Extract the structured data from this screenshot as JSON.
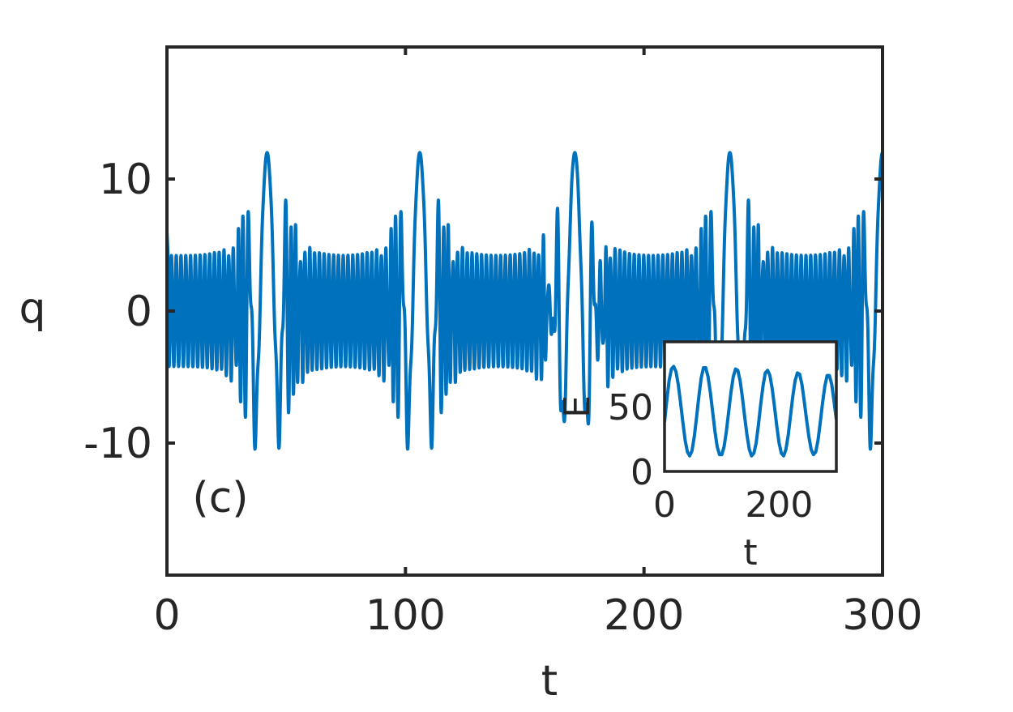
{
  "chart_data": [
    {
      "type": "line",
      "title": "",
      "xlabel": "t",
      "ylabel": "q",
      "panel_label": "(c)",
      "xlim": [
        0,
        300
      ],
      "ylim": [
        -20,
        20
      ],
      "xticks": [
        0,
        100,
        200,
        300
      ],
      "xtick_labels": [
        "0",
        "100",
        "200",
        "300"
      ],
      "yticks": [
        -10,
        0,
        10
      ],
      "ytick_labels": [
        "-10",
        "0",
        "10"
      ],
      "grid": false,
      "legend": "none",
      "color": "#0072BD",
      "series": [
        {
          "name": "",
          "description_values": {
            "carrier_period": 2.0,
            "fast_envelope": 4.2,
            "burst_centers": [
              42,
              106,
              171,
              236,
              300
            ],
            "x": [
              0,
              14.5,
              29.3,
              36.1,
              42.5,
              51.9,
              57.9,
              73.8,
              96.6,
              101.4,
              106.4,
              115.4,
              121.4,
              138.2,
              160.6,
              165.7,
              171.5,
              180.3,
              186.1,
              203.1,
              225.4,
              230.5,
              236.5,
              245.5,
              251.2,
              268.1,
              290.3,
              295.3,
              300
            ],
            "y": [
              6.0,
              4.2,
              6.8,
              -8.4,
              11.6,
              -11.3,
              8.2,
              4.2,
              6.9,
              -8.6,
              12.0,
              -10.7,
              7.9,
              4.2,
              6.8,
              -8.9,
              12.4,
              -9.9,
              7.5,
              4.2,
              7.3,
              -9.4,
              12.6,
              -9.3,
              7.2,
              4.2,
              7.7,
              -10.4,
              11.2
            ]
          }
        }
      ]
    },
    {
      "type": "line",
      "title": "",
      "xlabel": "t",
      "ylabel": "E",
      "xlim": [
        0,
        300
      ],
      "ylim": [
        0,
        100
      ],
      "xticks": [
        0,
        200
      ],
      "xtick_labels": [
        "0",
        "200"
      ],
      "yticks": [
        0,
        50
      ],
      "ytick_labels": [
        "0",
        "50"
      ],
      "grid": false,
      "legend": "none",
      "color": "#0072BD",
      "series": [
        {
          "name": "",
          "x": [
            0,
            4,
            8,
            12,
            16,
            20,
            24,
            28,
            32,
            36,
            40,
            44,
            48,
            52,
            56,
            60,
            64,
            68,
            72,
            76,
            80,
            84,
            88,
            92,
            96,
            100,
            104,
            108,
            112,
            116,
            120,
            124,
            128,
            132,
            136,
            140,
            144,
            148,
            152,
            156,
            160,
            164,
            168,
            172,
            176,
            180,
            184,
            188,
            192,
            196,
            200,
            204,
            208,
            212,
            216,
            220,
            224,
            228,
            232,
            236,
            240,
            244,
            248,
            252,
            256,
            260,
            264,
            268,
            272,
            276,
            280,
            284,
            288,
            292,
            296,
            300
          ],
          "y": [
            38,
            55,
            70,
            79,
            81,
            77,
            67,
            53,
            38,
            24,
            15,
            12,
            16,
            27,
            42,
            58,
            72,
            80,
            80,
            73,
            61,
            46,
            31,
            19,
            13,
            13,
            19,
            31,
            46,
            61,
            73,
            79,
            78,
            70,
            57,
            42,
            28,
            17,
            12,
            14,
            22,
            36,
            52,
            66,
            76,
            78,
            74,
            64,
            50,
            35,
            22,
            14,
            12,
            17,
            28,
            43,
            58,
            70,
            76,
            75,
            67,
            54,
            40,
            27,
            17,
            13,
            15,
            24,
            38,
            53,
            66,
            74,
            74,
            67,
            54,
            40
          ]
        }
      ]
    }
  ]
}
